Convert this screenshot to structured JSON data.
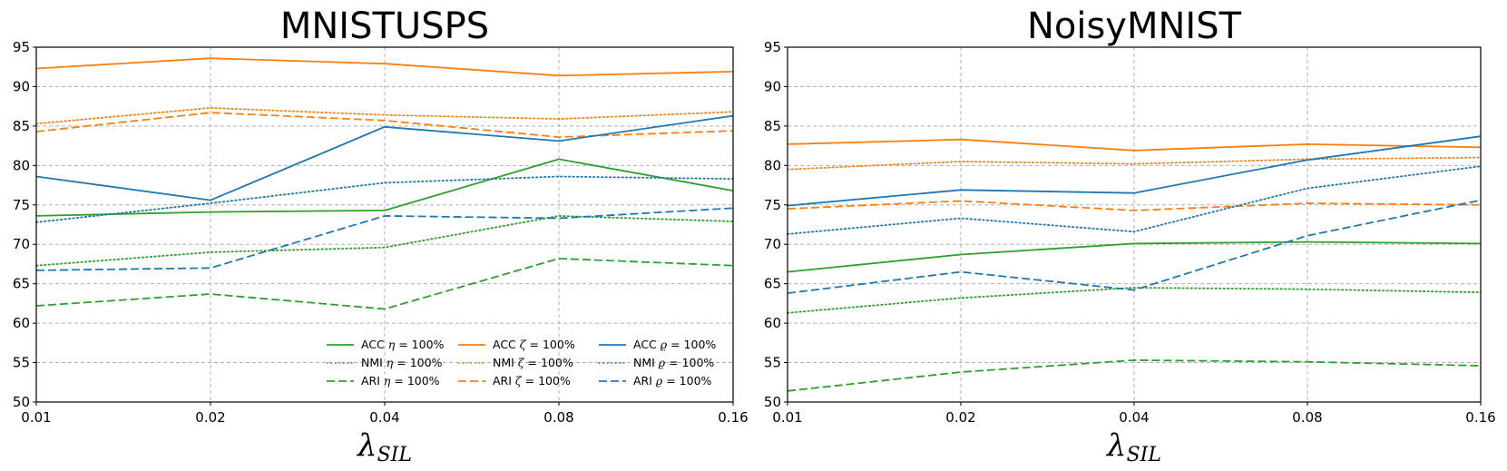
{
  "colors": {
    "green": "#2ca02c",
    "orange": "#ff7f0e",
    "blue": "#1f77b4",
    "grid": "#b0b0b0"
  },
  "chart_data": [
    {
      "type": "line",
      "title": "MNISTUSPS",
      "xlabel": "λ",
      "xlabel_sub": "SIL",
      "categories": [
        "0.01",
        "0.02",
        "0.04",
        "0.08",
        "0.16"
      ],
      "ylim": [
        50,
        95
      ],
      "yticks": [
        "50",
        "55",
        "60",
        "65",
        "70",
        "75",
        "80",
        "85",
        "90",
        "95"
      ],
      "grid": true,
      "legend_position": "lower-right",
      "series": [
        {
          "name": "ACC η = 100%",
          "metric": "ACC",
          "symbol": "η",
          "suffix": " = 100%",
          "color": "green",
          "style": "solid",
          "values": [
            73.6,
            74.1,
            74.3,
            80.8,
            76.8
          ]
        },
        {
          "name": "NMI η = 100%",
          "metric": "NMI",
          "symbol": "η",
          "suffix": " = 100%",
          "color": "green",
          "style": "dotted",
          "values": [
            67.3,
            69.0,
            69.6,
            73.6,
            72.9
          ]
        },
        {
          "name": "ARI η = 100%",
          "metric": "ARI",
          "symbol": "η",
          "suffix": " = 100%",
          "color": "green",
          "style": "dashed",
          "values": [
            62.2,
            63.7,
            61.8,
            68.2,
            67.3
          ]
        },
        {
          "name": "ACC ζ = 100%",
          "metric": "ACC",
          "symbol": "ζ",
          "suffix": " = 100%",
          "color": "orange",
          "style": "solid",
          "values": [
            92.3,
            93.6,
            92.9,
            91.4,
            91.9
          ]
        },
        {
          "name": "NMI ζ = 100%",
          "metric": "NMI",
          "symbol": "ζ",
          "suffix": " = 100%",
          "color": "orange",
          "style": "dotted",
          "values": [
            85.3,
            87.3,
            86.4,
            85.9,
            86.8
          ]
        },
        {
          "name": "ARI ζ = 100%",
          "metric": "ARI",
          "symbol": "ζ",
          "suffix": " = 100%",
          "color": "orange",
          "style": "dashed",
          "values": [
            84.3,
            86.7,
            85.7,
            83.6,
            84.4
          ]
        },
        {
          "name": "ACC ϱ = 100%",
          "metric": "ACC",
          "symbol": "ϱ",
          "suffix": " = 100%",
          "color": "blue",
          "style": "solid",
          "values": [
            78.6,
            75.6,
            84.9,
            83.1,
            86.3
          ]
        },
        {
          "name": "NMI ϱ = 100%",
          "metric": "NMI",
          "symbol": "ϱ",
          "suffix": " = 100%",
          "color": "blue",
          "style": "dotted",
          "values": [
            72.8,
            75.2,
            77.8,
            78.6,
            78.3
          ]
        },
        {
          "name": "ARI ϱ = 100%",
          "metric": "ARI",
          "symbol": "ϱ",
          "suffix": " = 100%",
          "color": "blue",
          "style": "dashed",
          "values": [
            66.7,
            67.0,
            73.6,
            73.3,
            74.6
          ]
        }
      ]
    },
    {
      "type": "line",
      "title": "NoisyMNIST",
      "xlabel": "λ",
      "xlabel_sub": "SIL",
      "categories": [
        "0.01",
        "0.02",
        "0.04",
        "0.08",
        "0.16"
      ],
      "ylim": [
        50,
        95
      ],
      "yticks": [
        "50",
        "55",
        "60",
        "65",
        "70",
        "75",
        "80",
        "85",
        "90",
        "95"
      ],
      "grid": true,
      "legend_position": "none",
      "series": [
        {
          "name": "ACC η = 100%",
          "color": "green",
          "style": "solid",
          "values": [
            66.5,
            68.7,
            70.1,
            70.3,
            70.1
          ]
        },
        {
          "name": "NMI η = 100%",
          "color": "green",
          "style": "dotted",
          "values": [
            61.3,
            63.2,
            64.5,
            64.3,
            63.9
          ]
        },
        {
          "name": "ARI η = 100%",
          "color": "green",
          "style": "dashed",
          "values": [
            51.4,
            53.8,
            55.3,
            55.1,
            54.6
          ]
        },
        {
          "name": "ACC ζ = 100%",
          "color": "orange",
          "style": "solid",
          "values": [
            82.7,
            83.3,
            81.9,
            82.7,
            82.3
          ]
        },
        {
          "name": "NMI ζ = 100%",
          "color": "orange",
          "style": "dotted",
          "values": [
            79.5,
            80.5,
            80.2,
            80.8,
            81.0
          ]
        },
        {
          "name": "ARI ζ = 100%",
          "color": "orange",
          "style": "dashed",
          "values": [
            74.5,
            75.5,
            74.3,
            75.2,
            75.0
          ]
        },
        {
          "name": "ACC ϱ = 100%",
          "color": "blue",
          "style": "solid",
          "values": [
            74.9,
            76.9,
            76.5,
            80.7,
            83.7
          ]
        },
        {
          "name": "NMI ϱ = 100%",
          "color": "blue",
          "style": "dotted",
          "values": [
            71.3,
            73.3,
            71.6,
            77.1,
            79.9
          ]
        },
        {
          "name": "ARI ϱ = 100%",
          "color": "blue",
          "style": "dashed",
          "values": [
            63.8,
            66.5,
            64.2,
            71.1,
            75.6
          ]
        }
      ]
    }
  ]
}
